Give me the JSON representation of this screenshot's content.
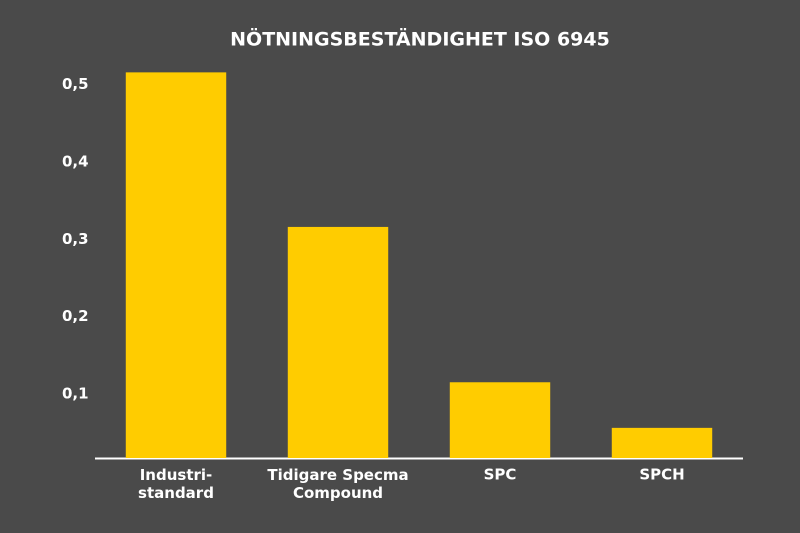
{
  "chart_data": {
    "type": "bar",
    "title": "NÖTNINGSBESTÄNDIGHET ISO 6945",
    "categories": [
      "Industri-\nstandard",
      "Tidigare Specma\nCompound",
      "SPC",
      "SPCH"
    ],
    "values": [
      0.516,
      0.316,
      0.115,
      0.056
    ],
    "color": "#ffcc00",
    "ylim": [
      0.017,
      0.532
    ],
    "yticks": [
      {
        "value": 0.1,
        "label": "0,1"
      },
      {
        "value": 0.2,
        "label": "0,2"
      },
      {
        "value": 0.3,
        "label": "0,3"
      },
      {
        "value": 0.4,
        "label": "0,4"
      },
      {
        "value": 0.5,
        "label": "0,5"
      }
    ],
    "grid": false
  }
}
